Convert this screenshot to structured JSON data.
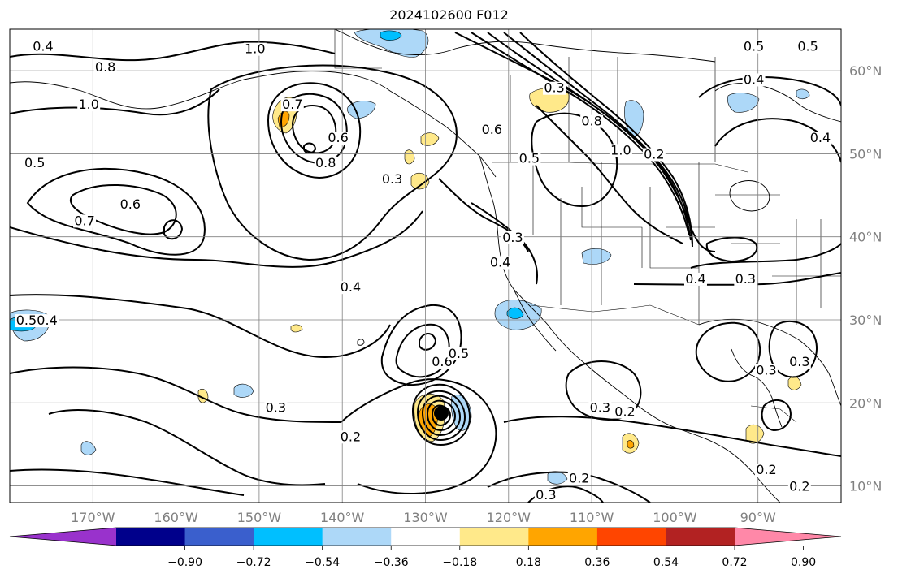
{
  "title": "2024102600 F012",
  "map": {
    "lon_range": [
      -180,
      -80
    ],
    "lat_range": [
      8,
      65
    ],
    "grid": true
  },
  "lon_ticks": [
    "170°W",
    "160°W",
    "150°W",
    "140°W",
    "130°W",
    "120°W",
    "110°W",
    "100°W",
    "90°W"
  ],
  "lat_ticks": [
    "60°N",
    "50°N",
    "40°N",
    "30°N",
    "20°N",
    "10°N"
  ],
  "colorbar": {
    "colors": [
      "#9932cc",
      "#00008b",
      "#3a5fcd",
      "#00bfff",
      "#add8f8",
      "#ffffff",
      "#ffe98a",
      "#ffa500",
      "#ff4500",
      "#b22222",
      "#ff88a8"
    ],
    "tick_labels": [
      "−0.90",
      "−0.72",
      "−0.54",
      "−0.36",
      "−0.18",
      "0.18",
      "0.36",
      "0.54",
      "0.72",
      "0.90"
    ]
  },
  "contour_labels": [
    {
      "text": "1.0",
      "lon": -150.5,
      "lat": 62.2
    },
    {
      "text": "1.0",
      "lon": -170.5,
      "lat": 55.5
    },
    {
      "text": "0.4",
      "lon": -176,
      "lat": 62.5
    },
    {
      "text": "0.8",
      "lon": -168.5,
      "lat": 60
    },
    {
      "text": "0.5",
      "lon": -177,
      "lat": 48.5
    },
    {
      "text": "0.7",
      "lon": -171,
      "lat": 41.5
    },
    {
      "text": "0.6",
      "lon": -165.5,
      "lat": 43.5
    },
    {
      "text": "0.7",
      "lon": -146,
      "lat": 55.5
    },
    {
      "text": "0.6",
      "lon": -140.5,
      "lat": 51.5
    },
    {
      "text": "0.8",
      "lon": -142,
      "lat": 48.5
    },
    {
      "text": "0.3",
      "lon": -134,
      "lat": 46.5
    },
    {
      "text": "0.6",
      "lon": -122,
      "lat": 52.5
    },
    {
      "text": "0.3",
      "lon": -114.5,
      "lat": 57.5
    },
    {
      "text": "0.8",
      "lon": -110,
      "lat": 53.5
    },
    {
      "text": "1.0",
      "lon": -106.5,
      "lat": 50
    },
    {
      "text": "0.5",
      "lon": -117.5,
      "lat": 49
    },
    {
      "text": "0.3",
      "lon": -119.5,
      "lat": 39.5
    },
    {
      "text": "0.4",
      "lon": -121,
      "lat": 36.5
    },
    {
      "text": "0.4",
      "lon": -139,
      "lat": 33.5
    },
    {
      "text": "0.6",
      "lon": -128,
      "lat": 24.5
    },
    {
      "text": "0.5",
      "lon": -126,
      "lat": 25.5
    },
    {
      "text": "0.3",
      "lon": -148,
      "lat": 19
    },
    {
      "text": "0.2",
      "lon": -139,
      "lat": 15.5
    },
    {
      "text": "0.3",
      "lon": -109,
      "lat": 19
    },
    {
      "text": "0.2",
      "lon": -106,
      "lat": 18.5
    },
    {
      "text": "0.2",
      "lon": -111.5,
      "lat": 10.5
    },
    {
      "text": "0.3",
      "lon": -115.5,
      "lat": 8.5
    },
    {
      "text": "0.5",
      "lon": -84,
      "lat": 62.5
    },
    {
      "text": "0.5",
      "lon": -90.5,
      "lat": 62.5
    },
    {
      "text": "0.4",
      "lon": -90.5,
      "lat": 58.5
    },
    {
      "text": "0.4",
      "lon": -82.5,
      "lat": 51.5
    },
    {
      "text": "0.2",
      "lon": -102.5,
      "lat": 49.5
    },
    {
      "text": "0.4",
      "lon": -97.5,
      "lat": 34.5
    },
    {
      "text": "0.3",
      "lon": -91.5,
      "lat": 34.5
    },
    {
      "text": "0.3",
      "lon": -89,
      "lat": 23.5
    },
    {
      "text": "0.3",
      "lon": -85,
      "lat": 24.5
    },
    {
      "text": "0.2",
      "lon": -89,
      "lat": 11.5
    },
    {
      "text": "0.2",
      "lon": -85,
      "lat": 9.5
    },
    {
      "text": "0.5",
      "lon": -178,
      "lat": 29.5
    },
    {
      "text": "0.4",
      "lon": -175.5,
      "lat": 29.5
    }
  ]
}
